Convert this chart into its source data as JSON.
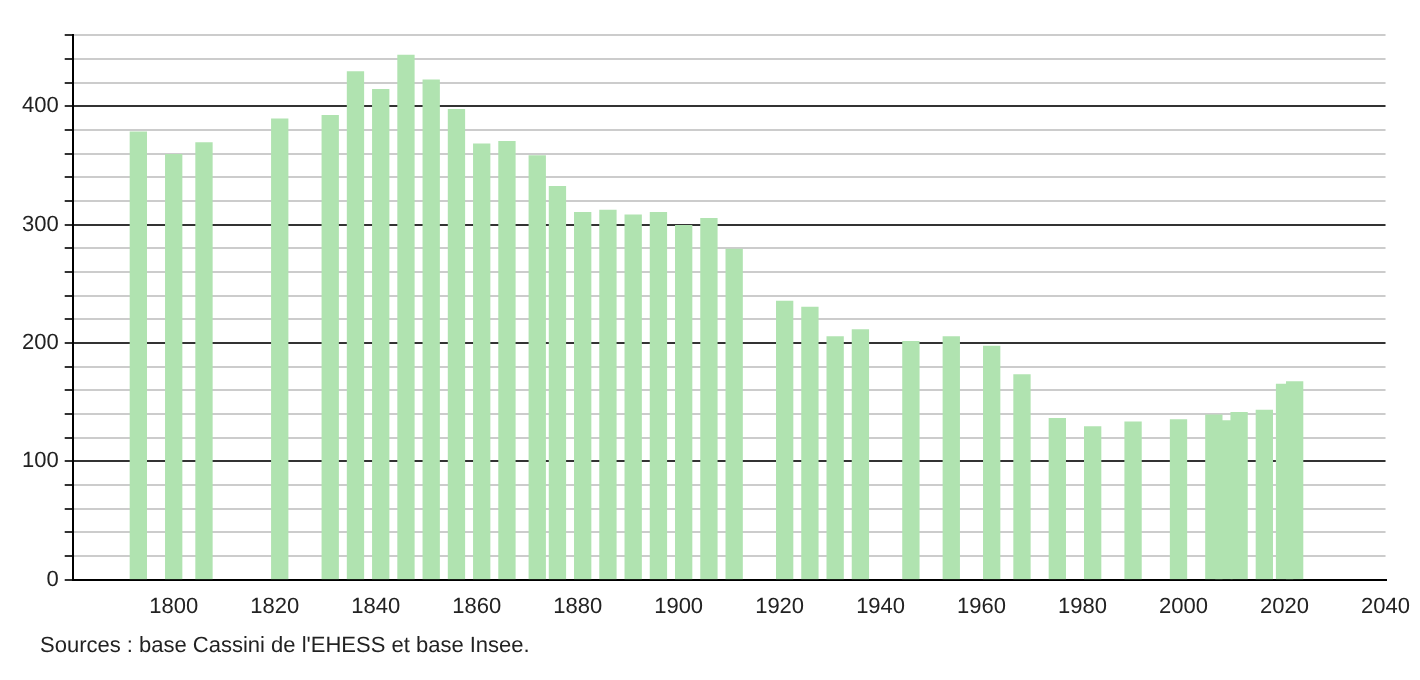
{
  "chart_data": {
    "type": "bar",
    "x": [
      1793,
      1800,
      1806,
      1821,
      1831,
      1836,
      1841,
      1846,
      1851,
      1856,
      1861,
      1866,
      1872,
      1876,
      1881,
      1886,
      1891,
      1896,
      1901,
      1906,
      1911,
      1921,
      1926,
      1931,
      1936,
      1946,
      1954,
      1962,
      1968,
      1975,
      1982,
      1990,
      1999,
      2006,
      2008,
      2011,
      2016,
      2020,
      2022
    ],
    "series": [
      {
        "color": "#b0e3b0",
        "values": [
          378,
          359,
          369,
          389,
          392,
          429,
          414,
          443,
          422,
          397,
          368,
          370,
          358,
          332,
          310,
          312,
          308,
          310,
          299,
          305,
          279,
          235,
          230,
          205,
          211,
          201,
          205,
          197,
          173,
          136,
          129,
          133,
          135,
          139,
          134,
          141,
          143,
          165,
          167
        ]
      }
    ],
    "xlim": [
      1780,
      2040
    ],
    "xticks": [
      1800,
      1820,
      1840,
      1860,
      1880,
      1900,
      1920,
      1940,
      1960,
      1980,
      2000,
      2020,
      2040
    ],
    "ylim": [
      0,
      460
    ],
    "yticks": [
      0,
      {
        "value": 20,
        "label": null
      },
      {
        "value": 40,
        "label": null
      },
      {
        "value": 60,
        "label": null
      },
      {
        "value": 80,
        "label": null
      },
      100,
      {
        "value": 120,
        "label": null
      },
      {
        "value": 140,
        "label": null
      },
      {
        "value": 160,
        "label": null
      },
      {
        "value": 180,
        "label": null
      },
      200,
      {
        "value": 220,
        "label": null
      },
      {
        "value": 240,
        "label": null
      },
      {
        "value": 260,
        "label": null
      },
      {
        "value": 280,
        "label": null
      },
      300,
      {
        "value": 320,
        "label": null
      },
      {
        "value": 340,
        "label": null
      },
      {
        "value": 360,
        "label": null
      },
      {
        "value": 380,
        "label": null
      },
      400,
      {
        "value": 420,
        "label": null
      },
      {
        "value": 440,
        "label": null
      },
      {
        "value": 460,
        "label": null
      }
    ],
    "grid": "y",
    "annotations": [
      "Sources : base Cassini de l'EHESS et base Insee."
    ]
  }
}
